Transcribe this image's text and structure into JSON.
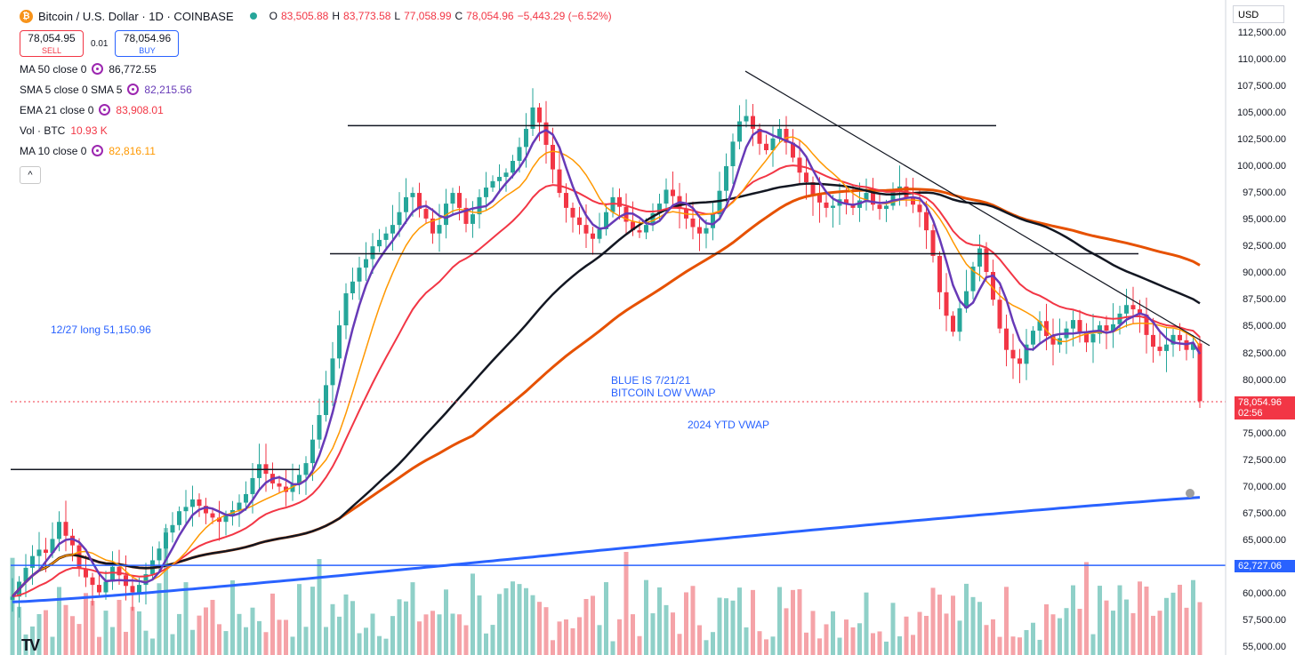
{
  "header": {
    "symbol_title": "Bitcoin / U.S. Dollar · 1D · COINBASE",
    "logo_letter": "₿",
    "open_label": "O",
    "open": "83,505.88",
    "high_label": "H",
    "high": "83,773.58",
    "low_label": "L",
    "low": "77,058.99",
    "close_label": "C",
    "close": "78,054.96",
    "change": "−5,443.29 (−6.52%)"
  },
  "trade": {
    "sell_price": "78,054.95",
    "sell_label": "SELL",
    "spread": "0.01",
    "buy_price": "78,054.96",
    "buy_label": "BUY"
  },
  "indicators": [
    {
      "name": "MA 50 close 0",
      "value": "86,772.55",
      "color": "#131722"
    },
    {
      "name": "SMA 5 close 0 SMA 5",
      "value": "82,215.56",
      "color": "#673ab7"
    },
    {
      "name": "EMA 21 close 0",
      "value": "83,908.01",
      "color": "#f23645"
    },
    {
      "name": "Vol · BTC",
      "value": "10.93 K",
      "color": "#f23645"
    },
    {
      "name": "MA 10 close 0",
      "value": "82,816.11",
      "color": "#ff9800"
    }
  ],
  "collapse_glyph": "^",
  "currency": "USD",
  "annotations": {
    "long_note": "12/27 long 51,150.96",
    "blue_note_1": "BLUE IS 7/21/21",
    "blue_note_2": "BITCOIN LOW VWAP",
    "ytd_vwap": "2024 YTD VWAP"
  },
  "price_axis": [
    "112,500.00",
    "110,000.00",
    "107,500.00",
    "105,000.00",
    "102,500.00",
    "100,000.00",
    "97,500.00",
    "95,000.00",
    "92,500.00",
    "90,000.00",
    "87,500.00",
    "85,000.00",
    "82,500.00",
    "80,000.00",
    "77,500.00",
    "75,000.00",
    "72,500.00",
    "70,000.00",
    "67,500.00",
    "65,000.00",
    "62,500.00",
    "60,000.00",
    "57,500.00",
    "55,000.00"
  ],
  "last_price_tag": {
    "price": "78,054.96",
    "countdown": "02:56",
    "color": "#f23645"
  },
  "line_tag": {
    "price": "62,727.06",
    "color": "#2962ff"
  },
  "tv_logo": "TV",
  "colors": {
    "up": "#26a69a",
    "down": "#f23645",
    "vol_up": "#8fd0c8",
    "vol_down": "#f5a3a8",
    "vwap": "#2962ff",
    "ma50": "#131722",
    "ema21": "#f23645",
    "ma10": "#ff9800",
    "sma5": "#673ab7",
    "ma200": "#e65100"
  },
  "chart_data": {
    "type": "candlestick",
    "y_range": [
      55000,
      113000
    ],
    "closes": [
      59800,
      61200,
      62500,
      63600,
      64200,
      63900,
      65200,
      66800,
      65500,
      64600,
      62400,
      61600,
      60900,
      60200,
      61200,
      62600,
      61800,
      60800,
      60200,
      60900,
      61900,
      63200,
      64300,
      65800,
      66500,
      67800,
      68200,
      68900,
      68300,
      67600,
      67200,
      66800,
      67400,
      67900,
      68600,
      69400,
      70900,
      72200,
      71300,
      70400,
      70100,
      69600,
      70300,
      71200,
      72300,
      74500,
      76800,
      79600,
      82100,
      85200,
      88200,
      89300,
      90600,
      91400,
      92600,
      93200,
      93800,
      94600,
      95800,
      97200,
      97600,
      96100,
      95200,
      93800,
      94600,
      96600,
      97600,
      96200,
      94700,
      95600,
      97200,
      98100,
      98700,
      99100,
      99500,
      100600,
      101900,
      103600,
      105600,
      104200,
      102100,
      99800,
      97600,
      96200,
      95300,
      94600,
      93800,
      93300,
      94200,
      95800,
      97200,
      96300,
      94900,
      94100,
      93900,
      94600,
      95700,
      96600,
      97900,
      97300,
      96100,
      95200,
      94400,
      93800,
      94300,
      95600,
      97800,
      100100,
      102400,
      104300,
      104800,
      103600,
      102200,
      101600,
      102700,
      103600,
      102300,
      100900,
      99500,
      98600,
      97400,
      96700,
      96200,
      96400,
      97000,
      96600,
      96200,
      96900,
      97600,
      96500,
      96100,
      96400,
      97800,
      98200,
      97100,
      96500,
      95800,
      94100,
      91700,
      88300,
      86100,
      84600,
      86800,
      88400,
      90700,
      92400,
      90200,
      87600,
      84900,
      82900,
      82100,
      81600,
      83400,
      84700,
      85600,
      84200,
      83400,
      84000,
      84900,
      85700,
      84600,
      83600,
      84400,
      85200,
      84700,
      85300,
      86300,
      87100,
      86700,
      86200,
      84300,
      83200,
      82800,
      83400,
      84300,
      83800,
      82900,
      83500,
      78100
    ],
    "price_scale_ticks": [
      112500,
      110000,
      107500,
      105000,
      102500,
      100000,
      97500,
      95000,
      92500,
      90000,
      87500,
      85000,
      82500,
      80000,
      77500,
      75000,
      72500,
      70000,
      67500,
      65000,
      62500,
      60000,
      57500,
      55000
    ]
  }
}
